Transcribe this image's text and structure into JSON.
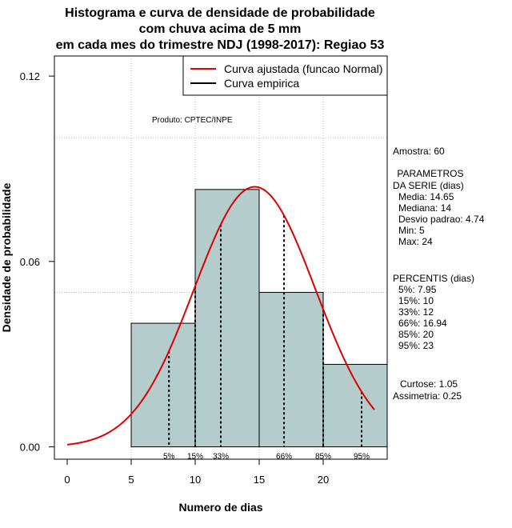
{
  "chart_data": {
    "type": "bar",
    "title_lines": [
      "Histograma e curva de densidade de probabilidade",
      "com chuva acima de 5 mm",
      "em cada mes do trimestre NDJ (1998-2017): Regiao 53"
    ],
    "xlabel": "Numero de dias",
    "ylabel": "Densidade de probabilidade",
    "xlim": [
      -1,
      25
    ],
    "ylim": [
      -0.004,
      0.1265
    ],
    "x_ticks": [
      0,
      5,
      10,
      15,
      20
    ],
    "x_tick_labels": [
      "0",
      "5",
      "10",
      "15",
      "20"
    ],
    "y_ticks": [
      0.0,
      0.06,
      0.12
    ],
    "y_tick_labels": [
      "0.00",
      "0.06",
      "0.12"
    ],
    "grid_x": [
      5,
      10,
      15,
      20
    ],
    "grid_y": [
      0.05,
      0.1
    ],
    "bins": [
      {
        "start": 5,
        "end": 10,
        "density": 0.04
      },
      {
        "start": 10,
        "end": 15,
        "density": 0.0833
      },
      {
        "start": 15,
        "end": 20,
        "density": 0.05
      },
      {
        "start": 20,
        "end": 25,
        "density": 0.0267
      }
    ],
    "normal_fit": {
      "mean": 14.65,
      "sd": 4.74,
      "x_from": 0,
      "x_to": 24
    },
    "percentiles": [
      {
        "label": "5%",
        "x": 7.95
      },
      {
        "label": "15%",
        "x": 10
      },
      {
        "label": "33%",
        "x": 12
      },
      {
        "label": "66%",
        "x": 16.94
      },
      {
        "label": "85%",
        "x": 20
      },
      {
        "label": "95%",
        "x": 23
      }
    ],
    "legend": {
      "position": "top-right",
      "entries": [
        {
          "label": "Curva ajustada (funcao Normal)",
          "color": "#dd0000"
        },
        {
          "label": "Curva empirica",
          "color": "#000000"
        }
      ]
    },
    "product_note": "Produto: CPTEC/INPE",
    "colors": {
      "bar_fill": "#b5cccc",
      "fit_curve": "#dd0000",
      "grid": "#bfbfbf"
    }
  },
  "side_panel": {
    "sample": "Amostra: 60",
    "params_title_1": " PARAMETROS",
    "params_title_2": "DA SERIE (dias)",
    "params": [
      "Media: 14.65",
      "Mediana: 14",
      "Desvio padrao: 4.74",
      "Min: 5",
      "Max: 24"
    ],
    "pct_title": "PERCENTIS (dias)",
    "pct_lines": [
      "5%: 7.95",
      "15%: 10",
      "33%: 12",
      "66%: 16.94",
      "85%: 20",
      "95%: 23"
    ],
    "kurtosis": "Curtose: 1.05",
    "skewness": "Assimetria: 0.25"
  }
}
